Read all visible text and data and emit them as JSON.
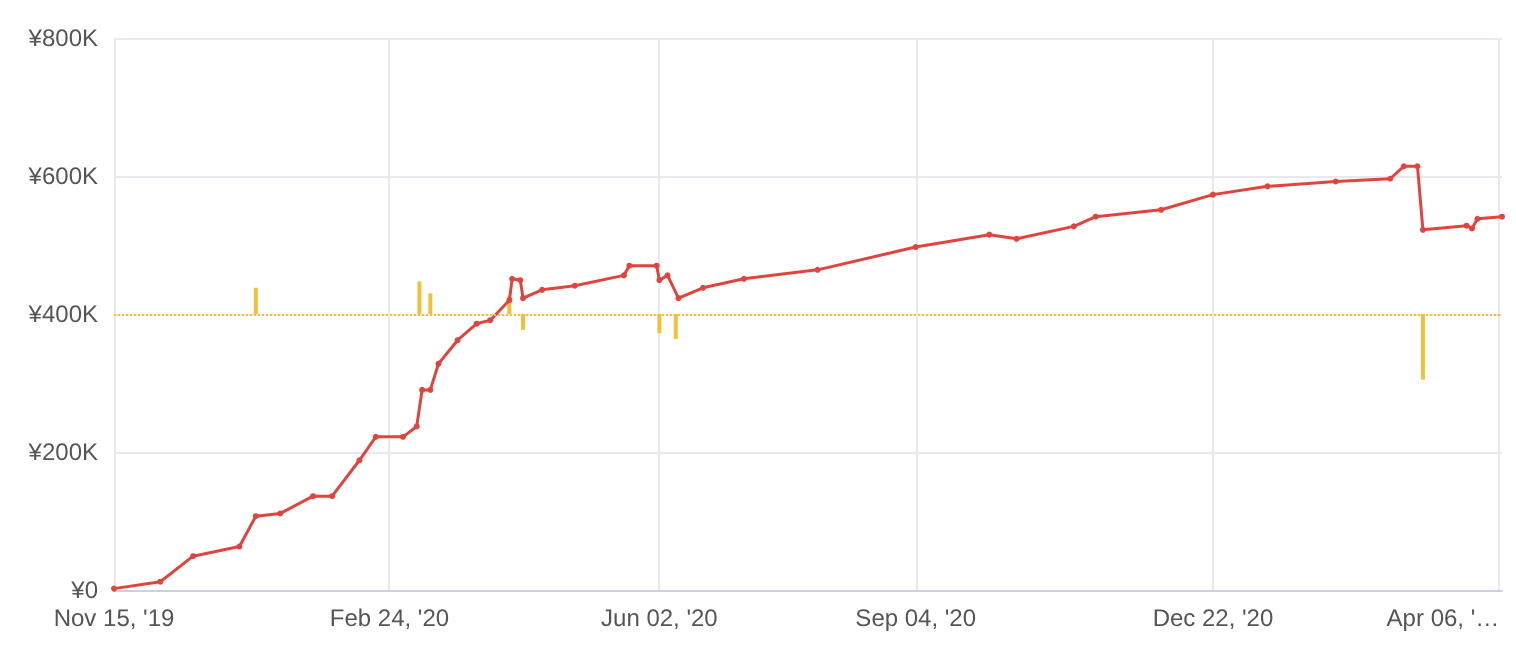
{
  "chart_data": {
    "type": "line",
    "xlim": [
      "2019-11-15",
      "2021-04-07"
    ],
    "xticks": [
      {
        "value": "2019-11-15",
        "label": "Nov 15, '19"
      },
      {
        "value": "2020-02-24",
        "label": "Feb 24, '20"
      },
      {
        "value": "2020-06-02",
        "label": "Jun 02, '20"
      },
      {
        "value": "2020-09-04",
        "label": "Sep 04, '20"
      },
      {
        "value": "2020-12-22",
        "label": "Dec 22, '20"
      },
      {
        "value": "2021-04-06",
        "label": "Apr 06, '…"
      }
    ],
    "ylim": [
      0,
      800000
    ],
    "yticks": [
      {
        "value": 0,
        "label": "¥0"
      },
      {
        "value": 200000,
        "label": "¥200K"
      },
      {
        "value": 400000,
        "label": "¥400K"
      },
      {
        "value": 600000,
        "label": "¥600K"
      },
      {
        "value": 800000,
        "label": "¥800K"
      }
    ],
    "grid": true,
    "marker": "circle",
    "line_style": "solid",
    "series": [
      {
        "color": "#e0443e",
        "x": [
          "2019-11-15",
          "2019-12-02",
          "2019-12-14",
          "2019-12-31",
          "2020-01-06",
          "2020-01-15",
          "2020-01-27",
          "2020-02-03",
          "2020-02-13",
          "2020-02-19",
          "2020-02-29",
          "2020-03-05",
          "2020-03-07",
          "2020-03-10",
          "2020-03-13",
          "2020-03-20",
          "2020-03-27",
          "2020-04-01",
          "2020-04-08",
          "2020-04-09",
          "2020-04-12",
          "2020-04-13",
          "2020-04-20",
          "2020-05-02",
          "2020-05-20",
          "2020-05-22",
          "2020-06-01",
          "2020-06-02",
          "2020-06-05",
          "2020-06-09",
          "2020-06-18",
          "2020-07-03",
          "2020-07-30",
          "2020-09-04",
          "2020-10-01",
          "2020-10-11",
          "2020-11-01",
          "2020-11-09",
          "2020-12-03",
          "2020-12-22",
          "2021-01-11",
          "2021-02-05",
          "2021-02-25",
          "2021-03-02",
          "2021-03-07",
          "2021-03-09",
          "2021-03-25",
          "2021-03-27",
          "2021-03-29",
          "2021-04-07"
        ],
        "values": [
          2000,
          12000,
          49000,
          63000,
          107000,
          111000,
          136000,
          136000,
          188000,
          222000,
          222000,
          237000,
          290000,
          290000,
          328000,
          362000,
          386000,
          391000,
          420000,
          451000,
          449000,
          423000,
          435000,
          441000,
          456000,
          470000,
          470000,
          449000,
          456000,
          423000,
          438000,
          451000,
          464000,
          497000,
          515000,
          509000,
          527000,
          541000,
          551000,
          573000,
          585000,
          592000,
          596000,
          614000,
          614000,
          522000,
          528000,
          524000,
          538000,
          541000
        ]
      },
      {
        "type": "bar",
        "color": "#f2c037",
        "x": [
          "2020-01-06",
          "2020-03-06",
          "2020-03-10",
          "2020-04-08",
          "2020-04-13",
          "2020-06-02",
          "2020-06-08",
          "2021-03-09"
        ],
        "base": [
          400000,
          400000,
          400000,
          400000,
          400000,
          400000,
          400000,
          400000
        ],
        "values": [
          38000,
          47000,
          30000,
          27000,
          -23000,
          -28000,
          -36000,
          -95000
        ]
      }
    ],
    "ref_lines": [
      {
        "axis": "y",
        "value": 400000,
        "color": "#f2c037",
        "line_style": "dotted"
      }
    ]
  }
}
